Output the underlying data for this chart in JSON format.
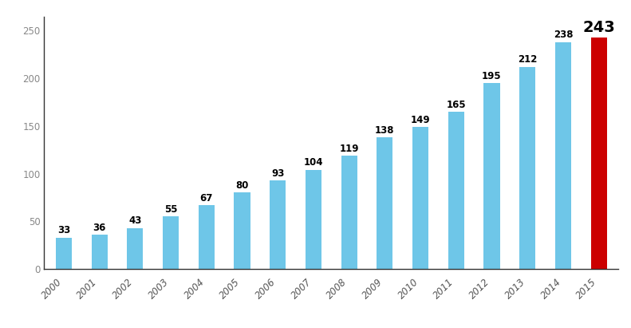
{
  "years": [
    "2000",
    "2001",
    "2002",
    "2003",
    "2004",
    "2005",
    "2006",
    "2007",
    "2008",
    "2009",
    "2010",
    "2011",
    "2012",
    "2013",
    "2014",
    "2015"
  ],
  "values": [
    33,
    36,
    43,
    55,
    67,
    80,
    93,
    104,
    119,
    138,
    149,
    165,
    195,
    212,
    238,
    243
  ],
  "bar_colors": [
    "#6EC6E8",
    "#6EC6E8",
    "#6EC6E8",
    "#6EC6E8",
    "#6EC6E8",
    "#6EC6E8",
    "#6EC6E8",
    "#6EC6E8",
    "#6EC6E8",
    "#6EC6E8",
    "#6EC6E8",
    "#6EC6E8",
    "#6EC6E8",
    "#6EC6E8",
    "#6EC6E8",
    "#CC0000"
  ],
  "ylim": [
    0,
    265
  ],
  "yticks": [
    0,
    50,
    100,
    150,
    200,
    250
  ],
  "background_color": "#ffffff",
  "label_fontsize": 8.5,
  "tick_fontsize": 8.5,
  "last_label_fontsize": 14,
  "bar_width": 0.45,
  "spine_color": "#333333",
  "tick_color": "#555555"
}
